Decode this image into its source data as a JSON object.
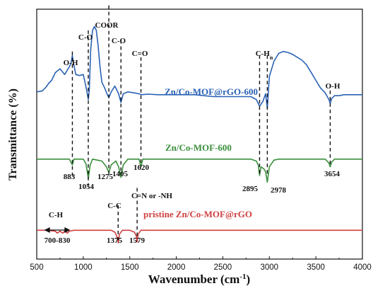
{
  "chart_data": {
    "type": "line",
    "title": "",
    "xlabel": "Wavenumber (cm",
    "xlabel_sup": "-1",
    "xlabel_close": ")",
    "ylabel": "Transmittance (%)",
    "xlim": [
      500,
      4000
    ],
    "xticks": [
      500,
      1000,
      1500,
      2000,
      2500,
      3000,
      3500,
      4000
    ],
    "grid": false,
    "legend": "labels placed next to each curve",
    "series": [
      {
        "name": "Zn/Co-MOF@rGO-600",
        "color": "#2a62b5",
        "offset": 70,
        "x": [
          500,
          560,
          600,
          630,
          660,
          700,
          750,
          800,
          850,
          870,
          883,
          895,
          920,
          960,
          1000,
          1030,
          1054,
          1065,
          1080,
          1100,
          1120,
          1140,
          1160,
          1180,
          1200,
          1230,
          1255,
          1275,
          1300,
          1340,
          1380,
          1405,
          1430,
          1480,
          1540,
          1600,
          1620,
          1700,
          1800,
          1900,
          2000,
          2100,
          2200,
          2300,
          2400,
          2500,
          2600,
          2700,
          2800,
          2860,
          2895,
          2930,
          2960,
          2978,
          3000,
          3050,
          3100,
          3150,
          3200,
          3250,
          3300,
          3350,
          3400,
          3450,
          3500,
          3550,
          3600,
          3640,
          3654,
          3670,
          3700,
          3750,
          3800,
          3850,
          3900,
          3950,
          4000
        ],
        "values": [
          2.0,
          2.5,
          4.5,
          6.5,
          8.0,
          12.0,
          14.0,
          11.0,
          15.0,
          17.0,
          21.0,
          17.0,
          11.0,
          10.5,
          11.0,
          4.5,
          -2.0,
          3.0,
          24.0,
          34.0,
          36.0,
          34.0,
          26.0,
          15.0,
          7.0,
          4.0,
          1.0,
          -1.0,
          2.0,
          5.0,
          1.0,
          -3.5,
          1.0,
          2.0,
          1.5,
          1.0,
          0.5,
          0.8,
          0.5,
          0.5,
          0.5,
          0.5,
          0.5,
          0.0,
          -0.5,
          -0.5,
          -0.5,
          -0.5,
          -0.5,
          -2.0,
          -5.5,
          -3.0,
          1.0,
          -6.5,
          10.0,
          18.0,
          22.0,
          23.0,
          22.5,
          21.5,
          20.0,
          18.5,
          16.0,
          12.0,
          8.0,
          4.0,
          1.5,
          -2.0,
          -4.0,
          -1.5,
          0.0,
          0.0,
          0.5,
          0.5,
          0.5,
          0.5,
          0.5
        ]
      },
      {
        "name": "Zn/Co-MOF-600",
        "color": "#3a8f3c",
        "offset": 37,
        "x": [
          500,
          600,
          700,
          750,
          800,
          850,
          883,
          900,
          950,
          1000,
          1030,
          1054,
          1075,
          1100,
          1150,
          1200,
          1250,
          1275,
          1300,
          1350,
          1380,
          1405,
          1430,
          1480,
          1550,
          1600,
          1620,
          1640,
          1700,
          1800,
          1900,
          2000,
          2100,
          2200,
          2300,
          2400,
          2500,
          2600,
          2700,
          2800,
          2860,
          2880,
          2895,
          2910,
          2940,
          2960,
          2978,
          3000,
          3050,
          3100,
          3200,
          3300,
          3400,
          3500,
          3600,
          3640,
          3654,
          3670,
          3700,
          3800,
          3900,
          4000
        ],
        "values": [
          0.0,
          0.0,
          0.0,
          0.0,
          0.0,
          0.0,
          -3.0,
          0.0,
          0.0,
          0.0,
          -2.5,
          -10.0,
          -3.0,
          0.0,
          -0.5,
          -1.0,
          -4.0,
          -7.0,
          -3.0,
          -1.0,
          -4.0,
          -9.5,
          -3.0,
          0.0,
          0.0,
          0.0,
          -4.0,
          0.0,
          0.0,
          0.0,
          0.0,
          0.0,
          0.0,
          0.0,
          0.0,
          0.0,
          0.0,
          0.0,
          0.0,
          0.0,
          -1.0,
          -3.0,
          -8.5,
          -4.0,
          -5.0,
          -6.5,
          -12.0,
          -4.0,
          -0.5,
          0.0,
          0.0,
          0.0,
          0.0,
          0.0,
          0.0,
          -2.0,
          -4.0,
          -1.5,
          0.0,
          0.0,
          0.0,
          0.0
        ]
      },
      {
        "name": "pristine Zn/Co-MOF@rGO",
        "color": "#d04040",
        "offset": 0,
        "x": [
          500,
          600,
          700,
          720,
          750,
          780,
          800,
          830,
          850,
          900,
          1000,
          1100,
          1200,
          1300,
          1340,
          1360,
          1375,
          1390,
          1420,
          1500,
          1550,
          1570,
          1579,
          1590,
          1620,
          1700,
          1800,
          2000,
          2200,
          2400,
          2600,
          2800,
          3000,
          3200,
          3400,
          3600,
          3800,
          4000
        ],
        "values": [
          0.0,
          0.0,
          -0.5,
          -1.5,
          -0.5,
          -1.5,
          -0.5,
          -1.5,
          -0.5,
          0.0,
          0.0,
          0.0,
          0.0,
          0.0,
          -1.0,
          -3.0,
          -6.5,
          -2.0,
          0.0,
          0.0,
          -1.0,
          -3.0,
          -6.0,
          -2.0,
          0.0,
          0.0,
          0.0,
          0.0,
          0.0,
          0.0,
          0.0,
          0.0,
          0.0,
          0.0,
          0.0,
          0.0,
          0.0,
          0.0
        ]
      }
    ],
    "ylim": [
      -15,
      115
    ],
    "annotations": {
      "group_labels": [
        {
          "text": "O-H",
          "x": 883
        },
        {
          "text": "C-O",
          "x": 1054
        },
        {
          "text": "COOR",
          "x": 1275
        },
        {
          "text": "C-O",
          "x": 1405
        },
        {
          "text": "C=O",
          "x": 1620
        },
        {
          "text": "C-H",
          "sub": "n",
          "x": 2937
        },
        {
          "text": "O-H",
          "x": 3654
        }
      ],
      "number_labels": [
        "883",
        "1054",
        "1275",
        "1405",
        "1620",
        "2895",
        "2978",
        "3654"
      ],
      "pristine_labels": [
        {
          "text": "C-H",
          "x": 765
        },
        {
          "text": "700-830",
          "x": 765
        },
        {
          "text": "C-C",
          "x": 1375
        },
        {
          "text": "1375",
          "x": 1375
        },
        {
          "text": "C=N or -NH",
          "x": 1579
        },
        {
          "text": "1579",
          "x": 1579
        }
      ]
    }
  }
}
